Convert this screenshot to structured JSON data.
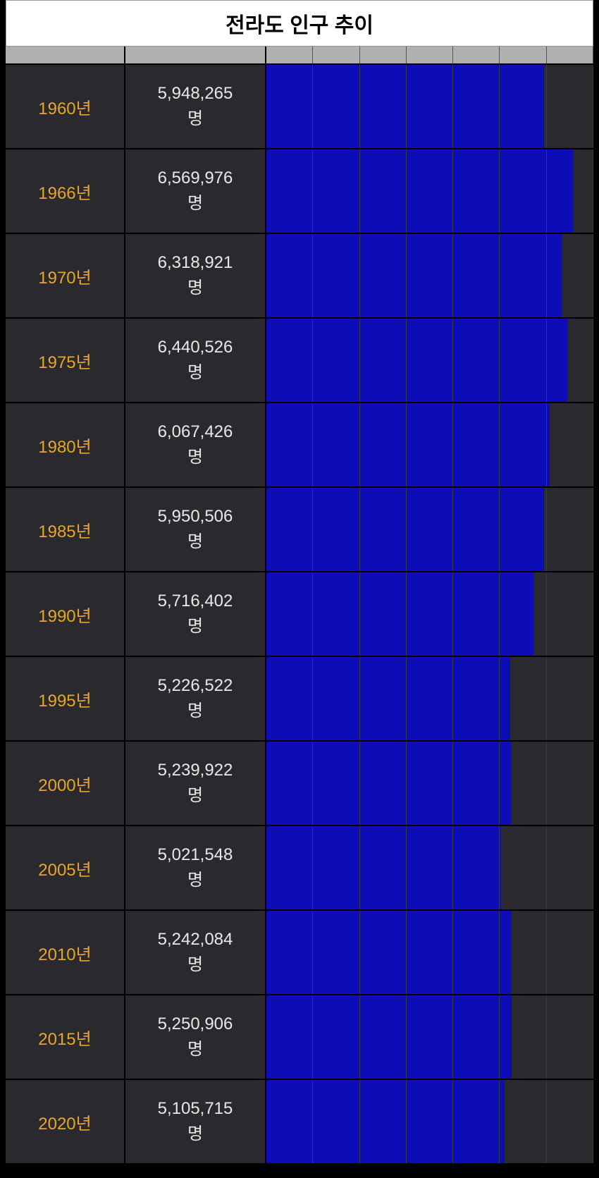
{
  "title": "전라도 인구 추이",
  "chart": {
    "type": "horizontal-bar",
    "year_suffix": "년",
    "value_suffix": "명",
    "bar_color": "#0d0db8",
    "background_color": "#2a2a2e",
    "year_color": "#e8a528",
    "value_color": "#e8e8e8",
    "title_bg_color": "#ffffff",
    "title_color": "#000000",
    "header_bg_color": "#b0b0b0",
    "grid_color": "#3a3a3e",
    "max_value": 7000000,
    "grid_step": 1000000,
    "title_fontsize": 30,
    "year_fontsize": 24,
    "value_fontsize": 24,
    "rows": [
      {
        "year": 1960,
        "value": 5948265,
        "value_label": "5,948,265"
      },
      {
        "year": 1966,
        "value": 6569976,
        "value_label": "6,569,976"
      },
      {
        "year": 1970,
        "value": 6318921,
        "value_label": "6,318,921"
      },
      {
        "year": 1975,
        "value": 6440526,
        "value_label": "6,440,526"
      },
      {
        "year": 1980,
        "value": 6067426,
        "value_label": "6,067,426"
      },
      {
        "year": 1985,
        "value": 5950506,
        "value_label": "5,950,506"
      },
      {
        "year": 1990,
        "value": 5716402,
        "value_label": "5,716,402"
      },
      {
        "year": 1995,
        "value": 5226522,
        "value_label": "5,226,522"
      },
      {
        "year": 2000,
        "value": 5239922,
        "value_label": "5,239,922"
      },
      {
        "year": 2005,
        "value": 5021548,
        "value_label": "5,021,548"
      },
      {
        "year": 2010,
        "value": 5242084,
        "value_label": "5,242,084"
      },
      {
        "year": 2015,
        "value": 5250906,
        "value_label": "5,250,906"
      },
      {
        "year": 2020,
        "value": 5105715,
        "value_label": "5,105,715"
      }
    ]
  }
}
